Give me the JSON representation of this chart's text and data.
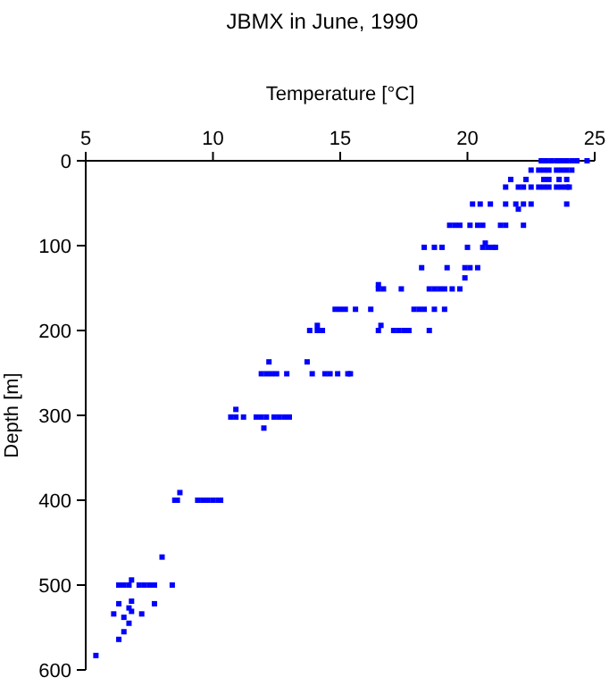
{
  "chart_data": {
    "type": "scatter",
    "title": "JBMX in June, 1990",
    "xlabel": "Temperature [°C]",
    "ylabel": "Depth [m]",
    "xlim": [
      5,
      25
    ],
    "xticks": [
      5,
      10,
      15,
      20,
      25
    ],
    "ylim": [
      600,
      0
    ],
    "yticks": [
      0,
      100,
      200,
      300,
      400,
      500,
      600
    ],
    "marker": "square",
    "grid": false,
    "series": [
      {
        "color": "#0000ff",
        "x": [
          22.9,
          23.1,
          23.3,
          23.5,
          23.7,
          23.9,
          24.1,
          24.3,
          24.7,
          22.5,
          22.8,
          23,
          23.2,
          23.5,
          23.7,
          23.9,
          24.1,
          21.7,
          22.3,
          23,
          23.2,
          23.6,
          23.9,
          21.5,
          22,
          22.2,
          22.5,
          22.8,
          23,
          23.2,
          23.5,
          23.7,
          23.9,
          24,
          20.2,
          20.5,
          20.9,
          21.5,
          21.9,
          22.2,
          22.5,
          23.9,
          22,
          19.3,
          19.5,
          19.7,
          20.1,
          20.4,
          20.6,
          21.3,
          21.5,
          22.2,
          20.7,
          18.3,
          18.7,
          19,
          20,
          20.6,
          20.8,
          21,
          21.1,
          18.2,
          19.2,
          19.9,
          20.1,
          20.4,
          19.9,
          16.5,
          16.5,
          16.7,
          17.4,
          18.5,
          18.7,
          18.9,
          19.1,
          19.4,
          19.7,
          14.8,
          15,
          15.2,
          15.6,
          16.2,
          17.9,
          18.1,
          18.3,
          18.7,
          19.1,
          14.1,
          16.6,
          13.8,
          14.1,
          14.3,
          16.5,
          17.1,
          17.3,
          17.5,
          17.7,
          18.5,
          12.2,
          13.7,
          11.9,
          12.1,
          12.3,
          12.5,
          12.9,
          13.9,
          14.4,
          14.6,
          14.9,
          15.3,
          15.4,
          10.9,
          10.7,
          10.9,
          11.2,
          11.7,
          11.9,
          12.1,
          12.4,
          12.6,
          12.8,
          13,
          12,
          8.7,
          8.5,
          8.6,
          9.4,
          9.6,
          9.8,
          10,
          10.2,
          10.3,
          8,
          6.8,
          6.3,
          6.5,
          6.7,
          7.1,
          7.3,
          7.5,
          7.7,
          8.4,
          6.8,
          6.3,
          7.7,
          6.7,
          6.8,
          6.1,
          7.2,
          6.5,
          6.7,
          6.5,
          6.3,
          5.4
        ],
        "values": [
          0,
          0,
          0,
          0,
          0,
          0,
          0,
          0,
          0,
          11,
          11,
          11,
          11,
          11,
          11,
          11,
          11,
          22,
          22,
          22,
          22,
          22,
          22,
          31,
          31,
          31,
          31,
          31,
          31,
          31,
          31,
          31,
          31,
          31,
          51,
          51,
          51,
          51,
          51,
          51,
          51,
          51,
          57,
          76,
          76,
          76,
          76,
          76,
          76,
          76,
          76,
          76,
          97,
          102,
          102,
          102,
          102,
          102,
          102,
          102,
          102,
          126,
          126,
          126,
          126,
          126,
          138,
          146,
          151,
          151,
          151,
          151,
          151,
          151,
          151,
          151,
          151,
          175,
          175,
          175,
          175,
          175,
          175,
          175,
          175,
          175,
          175,
          194,
          194,
          200,
          200,
          200,
          200,
          200,
          200,
          200,
          200,
          200,
          237,
          237,
          251,
          251,
          251,
          251,
          251,
          251,
          251,
          251,
          251,
          251,
          251,
          293,
          302,
          302,
          302,
          302,
          302,
          302,
          302,
          302,
          302,
          302,
          315,
          391,
          400,
          400,
          400,
          400,
          400,
          400,
          400,
          400,
          467,
          494,
          500,
          500,
          500,
          500,
          500,
          500,
          500,
          500,
          519,
          522,
          522,
          527,
          531,
          534,
          534,
          538,
          545,
          555,
          564,
          583
        ]
      }
    ]
  }
}
